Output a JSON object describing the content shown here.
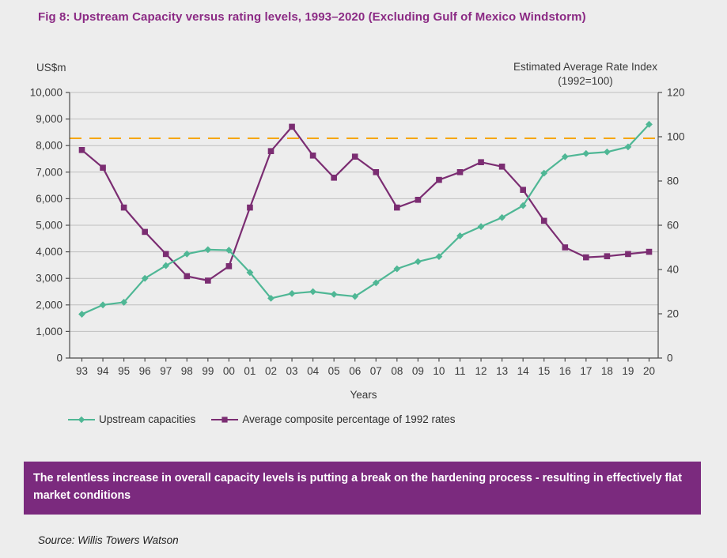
{
  "title": "Fig 8: Upstream Capacity versus rating levels, 1993–2020 (Excluding Gulf of Mexico Windstorm)",
  "axes": {
    "left_unit_label": "US$m",
    "right_axis_title_line1": "Estimated Average Rate Index",
    "right_axis_title_line2": "(1992=100)",
    "x_axis_label": "Years"
  },
  "legend": [
    {
      "label": "Upstream capacities",
      "color": "#4fb795",
      "marker": "diamond"
    },
    {
      "label": "Average composite percentage of 1992 rates",
      "color": "#7b2d72",
      "marker": "square"
    }
  ],
  "banner": {
    "text": "The relentless increase in overall capacity levels is putting a break on the hardening process - resulting in effectively flat market conditions",
    "background": "#7b2a7e"
  },
  "source": "Source: Willis Towers Watson",
  "colors": {
    "title": "#8b2a84",
    "upstream_series": "#4fb795",
    "rate_series": "#7b2d72",
    "reference_line": "#f5a602",
    "gridline": "#bfbfbf",
    "axis": "#4d4d4d",
    "background": "#ededed"
  },
  "chart_data": {
    "type": "line",
    "categories": [
      "93",
      "94",
      "95",
      "96",
      "97",
      "98",
      "99",
      "00",
      "01",
      "02",
      "03",
      "04",
      "05",
      "06",
      "07",
      "08",
      "09",
      "10",
      "11",
      "12",
      "13",
      "14",
      "15",
      "16",
      "17",
      "18",
      "19",
      "20"
    ],
    "series": [
      {
        "name": "Upstream capacities",
        "axis": "left",
        "color": "#4fb795",
        "marker": "diamond",
        "values": [
          1650,
          2000,
          2100,
          3000,
          3480,
          3920,
          4080,
          4060,
          3220,
          2250,
          2430,
          2500,
          2400,
          2320,
          2830,
          3360,
          3630,
          3820,
          4600,
          4950,
          5290,
          5740,
          6960,
          7580,
          7700,
          7760,
          7950,
          8800
        ]
      },
      {
        "name": "Average composite percentage of 1992 rates",
        "axis": "right",
        "color": "#7b2d72",
        "marker": "square",
        "values": [
          94,
          86,
          68,
          57,
          47,
          37,
          35,
          41.5,
          68,
          93.5,
          104.5,
          91.5,
          81.5,
          91,
          84,
          68,
          71.5,
          80.5,
          84,
          88.5,
          86.5,
          76,
          62,
          50,
          45.5,
          46,
          47,
          48
        ]
      }
    ],
    "left_axis": {
      "label": "US$m",
      "min": 0,
      "max": 10000,
      "step": 1000
    },
    "right_axis": {
      "label": "Estimated Average Rate Index (1992=100)",
      "min": 0,
      "max": 120,
      "step": 20
    },
    "reference_line": {
      "axis": "right",
      "value": 100,
      "color": "#f5a602",
      "style": "dashed"
    },
    "xlabel": "Years",
    "grid": true,
    "legend_position": "bottom"
  }
}
